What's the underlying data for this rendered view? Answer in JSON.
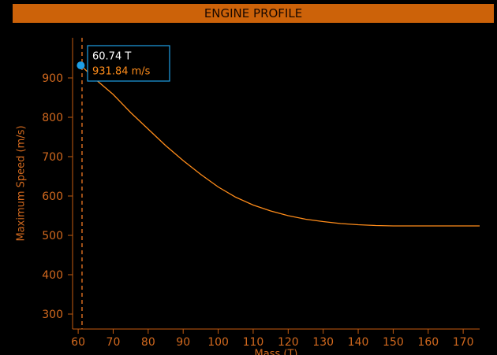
{
  "chart_data": {
    "type": "line",
    "title": "ENGINE PROFILE",
    "x_label": "Mass (T)",
    "y_label": "Maximum Speed (m/s)",
    "x": [
      60.74,
      65,
      70,
      75,
      80,
      85,
      90,
      95,
      100,
      105,
      110,
      115,
      120,
      125,
      130,
      135,
      140,
      145,
      150,
      160,
      174.7
    ],
    "values": [
      931.84,
      896,
      858,
      812,
      770,
      728,
      690,
      655,
      623,
      597,
      577,
      562,
      550,
      541,
      535,
      530,
      527,
      525,
      524,
      524,
      524
    ],
    "color": "#ff8c1a",
    "xlim": [
      58.4,
      174.7
    ],
    "xticks": [
      60,
      70,
      80,
      90,
      100,
      110,
      120,
      130,
      140,
      150,
      160,
      170
    ],
    "ylim": [
      262,
      1002
    ],
    "yticks": [
      300,
      400,
      500,
      600,
      700,
      800,
      900
    ],
    "grid": false,
    "reference_line": {
      "x": 61.1,
      "color": "#d2691e"
    },
    "highlight": {
      "x": 60.74,
      "y": 931.84,
      "x_label": "60.74 T",
      "y_label": "931.84 m/s",
      "color": "#1e9fe6"
    }
  }
}
